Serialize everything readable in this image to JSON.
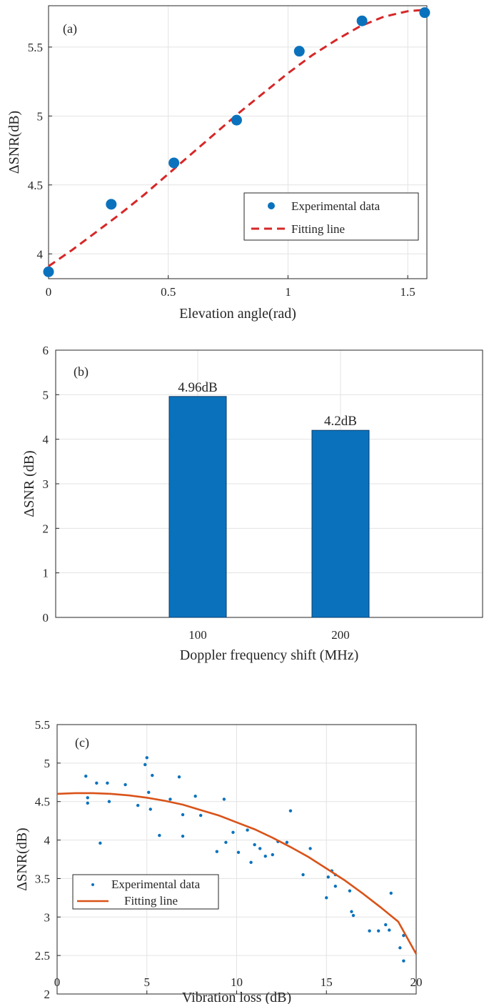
{
  "colors": {
    "blue": "#0a72bd",
    "red_dash": "#d62728",
    "orange": "#d95319",
    "axis": "#262626",
    "grid": "#e3e3e3",
    "bar_edge": "#0b3b6b"
  },
  "chart_data": [
    {
      "id": "a",
      "type": "scatter",
      "panel_label": "(a)",
      "xlabel": "Elevation angle(rad)",
      "ylabel": "ΔSNR(dB)",
      "xlim": [
        0,
        1.58
      ],
      "ylim": [
        3.82,
        5.8
      ],
      "xticks": [
        0,
        0.5,
        1,
        1.5
      ],
      "xtick_labels": [
        "0",
        "0.5",
        "1",
        "1.5"
      ],
      "yticks": [
        4,
        4.5,
        5,
        5.5
      ],
      "ytick_labels": [
        "4",
        "4.5",
        "5",
        "5.5"
      ],
      "grid": true,
      "legend_position": "lower-right",
      "series": [
        {
          "name": "Experimental data",
          "kind": "markers",
          "color": "#0a72bd",
          "x": [
            0,
            0.2618,
            0.5236,
            0.7854,
            1.0472,
            1.309,
            1.5708
          ],
          "y": [
            3.87,
            4.36,
            4.66,
            4.97,
            5.47,
            5.69,
            5.75
          ]
        },
        {
          "name": "Fitting line",
          "kind": "dashed-line",
          "color": "#d62728",
          "x": [
            0,
            0.1,
            0.2,
            0.3,
            0.4,
            0.5,
            0.6,
            0.7,
            0.8,
            0.9,
            1.0,
            1.1,
            1.2,
            1.3,
            1.4,
            1.5,
            1.5708
          ],
          "y": [
            3.91,
            4.03,
            4.16,
            4.29,
            4.43,
            4.58,
            4.73,
            4.88,
            5.03,
            5.17,
            5.31,
            5.44,
            5.55,
            5.65,
            5.72,
            5.76,
            5.77
          ]
        }
      ]
    },
    {
      "id": "b",
      "type": "bar",
      "panel_label": "(b)",
      "xlabel": "Doppler frequency shift (MHz)",
      "ylabel": "ΔSNR (dB)",
      "categories": [
        "100",
        "200"
      ],
      "values": [
        4.96,
        4.2
      ],
      "data_labels": [
        "4.96dB",
        "4.2dB"
      ],
      "ylim": [
        0,
        6
      ],
      "yticks": [
        0,
        1,
        2,
        3,
        4,
        5,
        6
      ],
      "ytick_labels": [
        "0",
        "1",
        "2",
        "3",
        "4",
        "5",
        "6"
      ],
      "grid": true,
      "bar_color": "#0a72bd"
    },
    {
      "id": "c",
      "type": "scatter",
      "panel_label": "(c)",
      "xlabel": "Vibration loss (dB)",
      "ylabel": "ΔSNR(dB)",
      "xlim": [
        0,
        20
      ],
      "ylim": [
        2,
        5.5
      ],
      "xticks": [
        0,
        5,
        10,
        15,
        20
      ],
      "xtick_labels": [
        "0",
        "5",
        "10",
        "15",
        "20"
      ],
      "yticks": [
        2,
        2.5,
        3,
        3.5,
        4,
        4.5,
        5,
        5.5
      ],
      "ytick_labels": [
        "2",
        "2.5",
        "3",
        "3.5",
        "4",
        "4.5",
        "5",
        "5.5"
      ],
      "grid": true,
      "legend_position": "lower-left",
      "series": [
        {
          "name": "Experimental data",
          "kind": "dots",
          "color": "#0a72bd",
          "points": [
            [
              1.6,
              4.83
            ],
            [
              1.7,
              4.55
            ],
            [
              1.7,
              4.48
            ],
            [
              2.2,
              4.74
            ],
            [
              2.4,
              3.96
            ],
            [
              2.8,
              4.74
            ],
            [
              2.9,
              4.5
            ],
            [
              3.8,
              4.72
            ],
            [
              4.5,
              4.45
            ],
            [
              4.9,
              4.98
            ],
            [
              5.0,
              5.07
            ],
            [
              5.1,
              4.62
            ],
            [
              5.2,
              4.4
            ],
            [
              5.3,
              4.84
            ],
            [
              5.7,
              4.06
            ],
            [
              6.3,
              4.53
            ],
            [
              6.8,
              4.82
            ],
            [
              7.0,
              4.33
            ],
            [
              7.0,
              4.05
            ],
            [
              7.7,
              4.57
            ],
            [
              8.0,
              4.32
            ],
            [
              8.9,
              3.85
            ],
            [
              9.3,
              4.53
            ],
            [
              9.4,
              3.97
            ],
            [
              9.8,
              4.1
            ],
            [
              10.1,
              3.84
            ],
            [
              10.6,
              4.13
            ],
            [
              10.8,
              3.71
            ],
            [
              11.0,
              3.94
            ],
            [
              11.3,
              3.89
            ],
            [
              11.6,
              3.79
            ],
            [
              12.0,
              3.81
            ],
            [
              12.3,
              3.98
            ],
            [
              12.8,
              3.97
            ],
            [
              13.0,
              4.38
            ],
            [
              13.7,
              3.55
            ],
            [
              14.1,
              3.89
            ],
            [
              15.0,
              3.25
            ],
            [
              15.1,
              3.52
            ],
            [
              15.3,
              3.6
            ],
            [
              15.5,
              3.55
            ],
            [
              15.5,
              3.4
            ],
            [
              16.3,
              3.34
            ],
            [
              16.4,
              3.07
            ],
            [
              16.5,
              3.02
            ],
            [
              17.4,
              2.82
            ],
            [
              17.9,
              2.82
            ],
            [
              18.3,
              2.9
            ],
            [
              18.5,
              2.83
            ],
            [
              18.6,
              3.31
            ],
            [
              19.1,
              2.6
            ],
            [
              19.3,
              2.76
            ],
            [
              19.3,
              2.43
            ]
          ]
        },
        {
          "name": "Fitting line",
          "kind": "solid-line",
          "color": "#d95319",
          "x": [
            0,
            1,
            2,
            3,
            4,
            5,
            6,
            7,
            8,
            9,
            10,
            11,
            12,
            13,
            14,
            15,
            16,
            17,
            18,
            19,
            20
          ],
          "y": [
            4.6,
            4.61,
            4.61,
            4.6,
            4.58,
            4.55,
            4.51,
            4.46,
            4.39,
            4.32,
            4.23,
            4.14,
            4.03,
            3.91,
            3.78,
            3.63,
            3.48,
            3.31,
            3.13,
            2.94,
            2.52
          ]
        }
      ]
    }
  ]
}
